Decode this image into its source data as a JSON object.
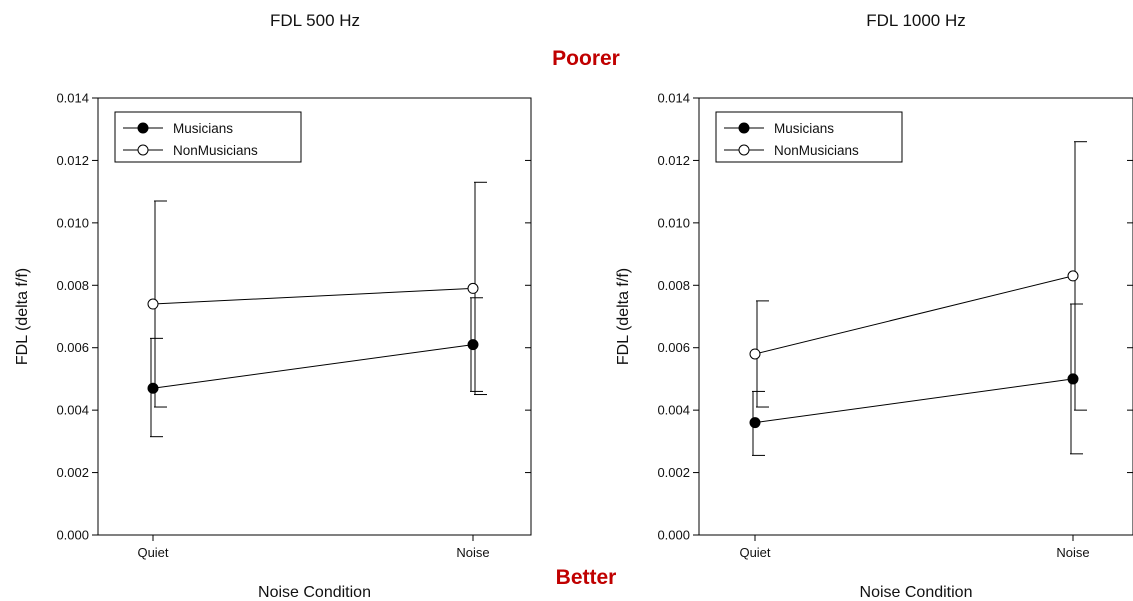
{
  "annotations": {
    "top": "Poorer",
    "bottom": "Better",
    "color": "#c00000"
  },
  "chart_data": [
    {
      "type": "line",
      "title": "FDL 500 Hz",
      "xlabel": "Noise Condition",
      "ylabel": "FDL (delta f/f)",
      "categories": [
        "Quiet",
        "Noise"
      ],
      "ylim": [
        0,
        0.014
      ],
      "yticks": [
        "0.000",
        "0.002",
        "0.004",
        "0.006",
        "0.008",
        "0.010",
        "0.012",
        "0.014"
      ],
      "legend_position": "top-left",
      "series": [
        {
          "name": "Musicians",
          "marker": "filled-circle",
          "values": [
            0.0047,
            0.0061
          ],
          "err_low": [
            0.00315,
            0.0046
          ],
          "err_high": [
            0.0063,
            0.0076
          ]
        },
        {
          "name": "NonMusicians",
          "marker": "open-circle",
          "values": [
            0.0074,
            0.0079
          ],
          "err_low": [
            0.0041,
            0.0045
          ],
          "err_high": [
            0.0107,
            0.0113
          ]
        }
      ]
    },
    {
      "type": "line",
      "title": "FDL 1000 Hz",
      "xlabel": "Noise Condition",
      "ylabel": "FDL (delta f/f)",
      "categories": [
        "Quiet",
        "Noise"
      ],
      "ylim": [
        0,
        0.014
      ],
      "yticks": [
        "0.000",
        "0.002",
        "0.004",
        "0.006",
        "0.008",
        "0.010",
        "0.012",
        "0.014"
      ],
      "legend_position": "top-left",
      "series": [
        {
          "name": "Musicians",
          "marker": "filled-circle",
          "values": [
            0.0036,
            0.005
          ],
          "err_low": [
            0.00255,
            0.0026
          ],
          "err_high": [
            0.0046,
            0.0074
          ]
        },
        {
          "name": "NonMusicians",
          "marker": "open-circle",
          "values": [
            0.0058,
            0.0083
          ],
          "err_low": [
            0.0041,
            0.004
          ],
          "err_high": [
            0.0075,
            0.0126
          ]
        }
      ]
    }
  ]
}
